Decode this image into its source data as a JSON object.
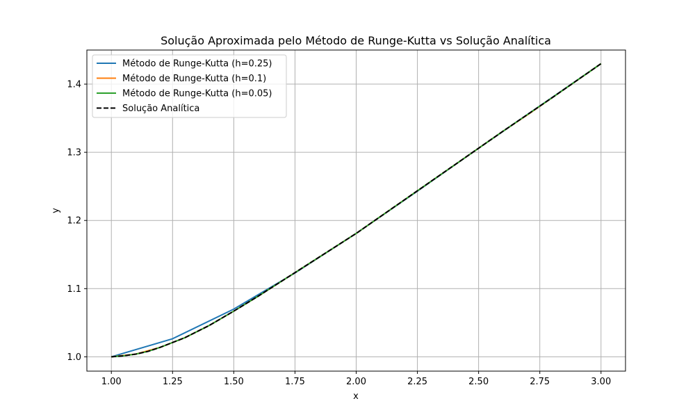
{
  "chart_data": {
    "type": "line",
    "title": "Solução Aproximada pelo Método de Runge-Kutta vs Solução Analítica",
    "xlabel": "x",
    "ylabel": "y",
    "xlim": [
      0.9,
      3.1
    ],
    "ylim": [
      0.979,
      1.45
    ],
    "xticks": [
      "1.00",
      "1.25",
      "1.50",
      "1.75",
      "2.00",
      "2.25",
      "2.50",
      "2.75",
      "3.00"
    ],
    "yticks": [
      "1.0",
      "1.1",
      "1.2",
      "1.3",
      "1.4"
    ],
    "grid": true,
    "legend_position": "top-left",
    "series": [
      {
        "name": "Método de Runge-Kutta (h=0.25)",
        "color": "#1f77b4",
        "style": "solid",
        "x": [
          1.0,
          1.25,
          1.5,
          1.75,
          2.0,
          2.25,
          2.5,
          2.75,
          3.0
        ],
        "y": [
          1.0,
          1.0265,
          1.07,
          1.123,
          1.181,
          1.243,
          1.306,
          1.368,
          1.43
        ]
      },
      {
        "name": "Método de Runge-Kutta (h=0.1)",
        "color": "#ff7f0e",
        "style": "solid",
        "x": [
          1.0,
          1.1,
          1.2,
          1.3,
          1.4,
          1.5,
          1.6,
          1.7,
          1.8,
          1.9,
          2.0,
          2.1,
          2.2,
          2.3,
          2.4,
          2.5,
          2.6,
          2.7,
          2.8,
          2.9,
          3.0
        ],
        "y": [
          1.0,
          1.004,
          1.014,
          1.028,
          1.046,
          1.067,
          1.089,
          1.112,
          1.135,
          1.158,
          1.181,
          1.206,
          1.231,
          1.256,
          1.281,
          1.306,
          1.331,
          1.355,
          1.38,
          1.405,
          1.43
        ]
      },
      {
        "name": "Método de Runge-Kutta (h=0.05)",
        "color": "#2ca02c",
        "style": "solid",
        "x": [
          1.0,
          1.05,
          1.1,
          1.15,
          1.2,
          1.3,
          1.4,
          1.5,
          1.6,
          1.7,
          1.8,
          1.9,
          2.0,
          2.2,
          2.4,
          2.6,
          2.8,
          3.0
        ],
        "y": [
          1.0,
          1.0015,
          1.004,
          1.008,
          1.014,
          1.028,
          1.046,
          1.067,
          1.089,
          1.112,
          1.135,
          1.158,
          1.181,
          1.231,
          1.281,
          1.331,
          1.38,
          1.43
        ]
      },
      {
        "name": "Solução Analítica",
        "color": "#000000",
        "style": "dashed",
        "x": [
          1.0,
          1.05,
          1.1,
          1.15,
          1.2,
          1.3,
          1.4,
          1.5,
          1.6,
          1.7,
          1.8,
          1.9,
          2.0,
          2.2,
          2.4,
          2.6,
          2.8,
          3.0
        ],
        "y": [
          1.0,
          1.0015,
          1.004,
          1.008,
          1.014,
          1.028,
          1.046,
          1.067,
          1.089,
          1.112,
          1.135,
          1.158,
          1.181,
          1.231,
          1.281,
          1.331,
          1.38,
          1.43
        ]
      }
    ]
  }
}
